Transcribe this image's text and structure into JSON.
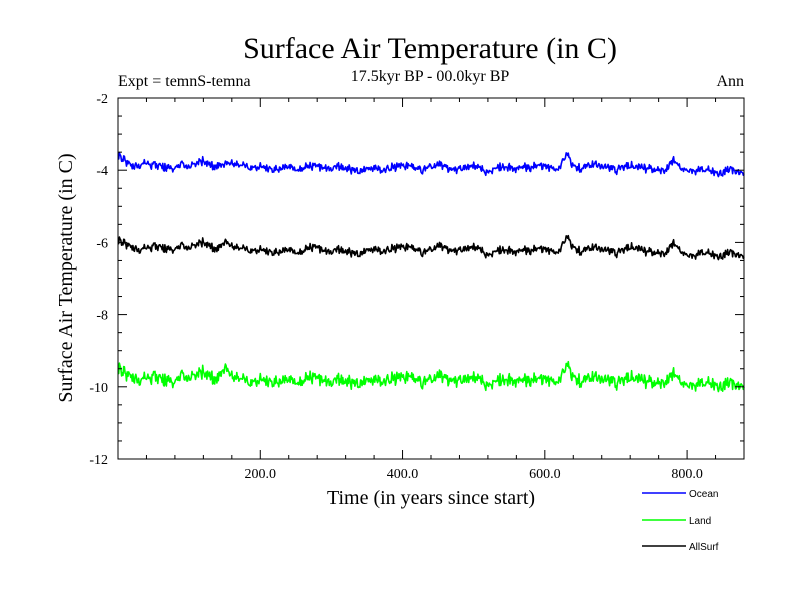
{
  "chart_data": {
    "type": "line",
    "title": "Surface Air Temperature (in C)",
    "subtitle": "17.5kyr BP - 00.0kyr BP",
    "left_label": "Expt = temnS-temna",
    "right_label": "Ann",
    "xlabel": "Time (in years since start)",
    "ylabel": "Surface Air Temperature (in C)",
    "xlim": [
      0,
      880
    ],
    "ylim": [
      -12,
      -2
    ],
    "x_ticks": [
      {
        "value": 200,
        "label": "200.0"
      },
      {
        "value": 400,
        "label": "400.0"
      },
      {
        "value": 600,
        "label": "600.0"
      },
      {
        "value": 800,
        "label": "800.0"
      }
    ],
    "y_ticks": [
      {
        "value": -2,
        "label": "-2"
      },
      {
        "value": -4,
        "label": "-4"
      },
      {
        "value": -6,
        "label": "-6"
      },
      {
        "value": -8,
        "label": "-8"
      },
      {
        "value": -10,
        "label": "-10"
      },
      {
        "value": -12,
        "label": "-12"
      }
    ],
    "series": [
      {
        "name": "Ocean",
        "color": "#0000ff",
        "values": [
          -3.6,
          -3.75,
          -3.9,
          -3.85,
          -3.8,
          -3.85,
          -3.9,
          -3.95,
          -3.9,
          -3.85,
          -3.9,
          -3.8,
          -3.75,
          -3.85,
          -3.9,
          -3.85,
          -3.8,
          -3.85,
          -3.9,
          -3.95,
          -3.9,
          -3.95,
          -4.0,
          -3.95,
          -3.9,
          -4.0,
          -3.95,
          -3.9,
          -3.85,
          -3.95,
          -4.0,
          -3.9,
          -3.95,
          -4.0,
          -4.05,
          -3.95,
          -3.9,
          -4.0,
          -3.95,
          -3.9,
          -3.85,
          -3.9,
          -3.95,
          -4.0,
          -3.9,
          -3.85,
          -3.9,
          -4.0,
          -3.95,
          -3.9,
          -3.85,
          -3.95,
          -4.05,
          -3.95,
          -3.9,
          -3.95,
          -4.0,
          -3.9,
          -3.95,
          -3.85,
          -3.9,
          -3.95,
          -4.0,
          -3.55,
          -3.9,
          -3.95,
          -3.9,
          -3.85,
          -3.9,
          -3.95,
          -4.0,
          -3.9,
          -3.85,
          -3.9,
          -3.95,
          -3.95,
          -4.0,
          -4.05,
          -3.7,
          -3.9,
          -4.0,
          -4.05,
          -3.95,
          -4.0,
          -4.1,
          -4.05,
          -3.95,
          -4.0,
          -4.1
        ]
      },
      {
        "name": "Land",
        "color": "#00ff00",
        "values": [
          -9.5,
          -9.65,
          -9.75,
          -9.8,
          -9.75,
          -9.7,
          -9.8,
          -9.85,
          -9.8,
          -9.7,
          -9.75,
          -9.65,
          -9.6,
          -9.7,
          -9.8,
          -9.5,
          -9.7,
          -9.75,
          -9.85,
          -9.9,
          -9.8,
          -9.85,
          -9.9,
          -9.85,
          -9.8,
          -9.9,
          -9.85,
          -9.75,
          -9.7,
          -9.85,
          -9.95,
          -9.8,
          -9.85,
          -9.9,
          -9.95,
          -9.8,
          -9.75,
          -9.85,
          -9.8,
          -9.75,
          -9.7,
          -9.75,
          -9.8,
          -9.9,
          -9.8,
          -9.7,
          -9.75,
          -9.85,
          -9.8,
          -9.75,
          -9.7,
          -9.8,
          -9.95,
          -9.85,
          -9.8,
          -9.85,
          -9.9,
          -9.8,
          -9.85,
          -9.75,
          -9.8,
          -9.85,
          -9.9,
          -9.4,
          -9.75,
          -9.85,
          -9.8,
          -9.75,
          -9.8,
          -9.85,
          -9.9,
          -9.8,
          -9.7,
          -9.75,
          -9.85,
          -9.85,
          -9.9,
          -9.95,
          -9.6,
          -9.8,
          -9.95,
          -10.0,
          -9.85,
          -9.9,
          -10.0,
          -9.95,
          -9.85,
          -9.9,
          -10.0
        ]
      },
      {
        "name": "AllSurf",
        "color": "#000000",
        "values": [
          -5.95,
          -6.05,
          -6.15,
          -6.2,
          -6.15,
          -6.1,
          -6.15,
          -6.2,
          -6.15,
          -6.1,
          -6.15,
          -6.05,
          -6.0,
          -6.1,
          -6.2,
          -6.0,
          -6.1,
          -6.15,
          -6.2,
          -6.25,
          -6.2,
          -6.25,
          -6.3,
          -6.25,
          -6.2,
          -6.3,
          -6.25,
          -6.15,
          -6.1,
          -6.25,
          -6.3,
          -6.2,
          -6.25,
          -6.3,
          -6.35,
          -6.2,
          -6.15,
          -6.25,
          -6.2,
          -6.15,
          -6.1,
          -6.15,
          -6.2,
          -6.3,
          -6.2,
          -6.1,
          -6.15,
          -6.25,
          -6.2,
          -6.15,
          -6.1,
          -6.2,
          -6.35,
          -6.25,
          -6.2,
          -6.25,
          -6.3,
          -6.2,
          -6.25,
          -6.15,
          -6.2,
          -6.25,
          -6.3,
          -5.85,
          -6.15,
          -6.25,
          -6.2,
          -6.15,
          -6.2,
          -6.25,
          -6.3,
          -6.2,
          -6.1,
          -6.15,
          -6.25,
          -6.25,
          -6.3,
          -6.35,
          -6.0,
          -6.2,
          -6.35,
          -6.4,
          -6.25,
          -6.3,
          -6.4,
          -6.35,
          -6.25,
          -6.3,
          -6.4
        ]
      }
    ],
    "legend_position": "bottom-right"
  }
}
